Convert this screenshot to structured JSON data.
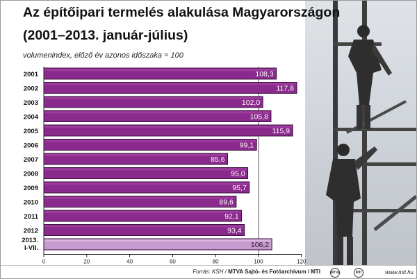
{
  "title_line1": "Az építőipari termelés alakulása Magyarországon",
  "title_line2": "(2001–2013. január-július)",
  "subtitle": "volumenindex, előző év azonos időszaka = 100",
  "colors": {
    "bar_main": "#8a2a8c",
    "bar_last": "#c79ad0",
    "bar_border": "#3a0f3c",
    "axis": "#222222"
  },
  "chart_data": {
    "type": "bar",
    "orientation": "horizontal",
    "categories": [
      "2001",
      "2002",
      "2003",
      "2004",
      "2005",
      "2006",
      "2007",
      "2008",
      "2009",
      "2010",
      "2011",
      "2012",
      "2013.\nI-VII."
    ],
    "values": [
      108.3,
      117.8,
      102.0,
      105.8,
      115.9,
      99.1,
      85.6,
      95.0,
      95.7,
      89.6,
      92.1,
      93.4,
      106.2
    ],
    "value_labels": [
      "108,3",
      "117,8",
      "102,0",
      "105,8",
      "115,9",
      "99,1",
      "85,6",
      "95,0",
      "95,7",
      "89,6",
      "92,1",
      "93,4",
      "106,2"
    ],
    "xlim": [
      0,
      120
    ],
    "xticks": [
      0,
      20,
      40,
      60,
      80,
      100,
      120
    ],
    "reference_line": 100,
    "highlight_last": true
  },
  "footer": {
    "source_prefix": "Forrás: KSH /",
    "source_main": "MTVA Sajtó- és Fotóarchívum / MTI",
    "logo1": "MTVA",
    "logo2": "MTI",
    "url": "www.mti.hu"
  }
}
